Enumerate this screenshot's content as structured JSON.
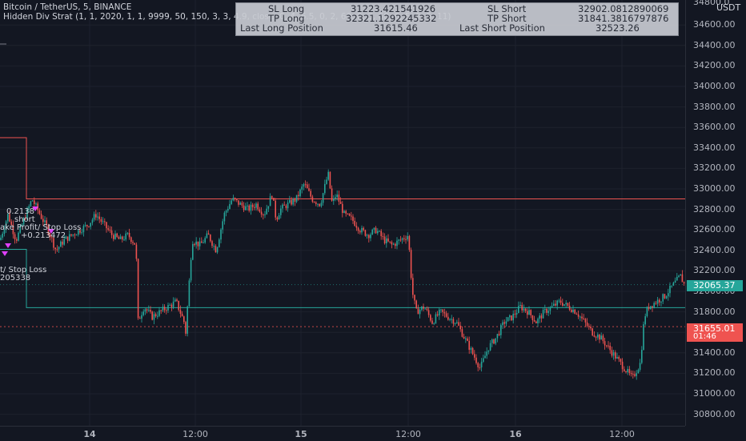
{
  "legend": {
    "symbol": "Bitcoin / TetherUS, 5, BINANCE",
    "indicator": "Hidden Div Strat (1, 1, 2020, 1, 1, 9999, 50, 150, 3, 3, 4.9, close, 0, 4, 6.5, 0, 2, 60, 0, 3, 60, 0, 5, 9, 5, 11)"
  },
  "stats_table": {
    "rows": [
      {
        "label1": "SL Long",
        "value1": "31223.421541926",
        "label2": "SL Short",
        "value2": "32902.0812890069"
      },
      {
        "label1": "TP Long",
        "value1": "32321.1292245332",
        "label2": "TP Short",
        "value2": "31841.3816797876"
      },
      {
        "label1": "Last Long Position",
        "value1": "31615.46",
        "label2": "Last Short Position",
        "value2": "32523.26"
      }
    ]
  },
  "price_axis": {
    "currency": "USDT",
    "top_partial": "34800.0",
    "ticks": [
      "34600.00",
      "34400.00",
      "34200.00",
      "34000.00",
      "33800.00",
      "33600.00",
      "33400.00",
      "33200.00",
      "33000.00",
      "32800.00",
      "32600.00",
      "32400.00",
      "32200.00",
      "32000.00",
      "31800.00",
      "31600.00",
      "31400.00",
      "31200.00",
      "31000.00",
      "30800.00"
    ],
    "current_price_label": "32065.37",
    "position_price_label": "31655.01",
    "position_sub_label": "01:46"
  },
  "time_axis": {
    "ticks": [
      "14",
      "12:00",
      "15",
      "12:00",
      "16",
      "12:00"
    ]
  },
  "annotations": {
    "a1": "0.2138",
    "a2": "short",
    "a3": "ake Profit/ Stop Loss",
    "a4": "+0.213472",
    "a5": "t/ Stop Loss",
    "a6": "205338"
  },
  "colors": {
    "background": "#131722",
    "up_candle": "#26a69a",
    "down_candle": "#ef5350",
    "stop_line": "#ef5350",
    "target_line": "#26a69a",
    "current_price_tag": "#26a69a",
    "position_price_tag": "#ef5350",
    "short_marker": "#e040fb"
  },
  "chart_data": {
    "type": "candlestick",
    "y_range": [
      30700,
      34800
    ],
    "price_path": [
      [
        0,
        32500
      ],
      [
        10,
        32750
      ],
      [
        20,
        32500
      ],
      [
        30,
        32700
      ],
      [
        40,
        32900
      ],
      [
        50,
        32750
      ],
      [
        60,
        32600
      ],
      [
        70,
        32400
      ],
      [
        80,
        32500
      ],
      [
        90,
        32550
      ],
      [
        100,
        32600
      ],
      [
        110,
        32650
      ],
      [
        120,
        32750
      ],
      [
        130,
        32650
      ],
      [
        140,
        32550
      ],
      [
        150,
        32500
      ],
      [
        160,
        32550
      ],
      [
        170,
        32450
      ],
      [
        172,
        31700
      ],
      [
        180,
        31850
      ],
      [
        190,
        31750
      ],
      [
        200,
        31800
      ],
      [
        210,
        31850
      ],
      [
        220,
        31900
      ],
      [
        230,
        31700
      ],
      [
        232,
        31600
      ],
      [
        240,
        32500
      ],
      [
        250,
        32450
      ],
      [
        260,
        32550
      ],
      [
        270,
        32400
      ],
      [
        280,
        32750
      ],
      [
        290,
        32900
      ],
      [
        300,
        32850
      ],
      [
        310,
        32800
      ],
      [
        320,
        32850
      ],
      [
        330,
        32750
      ],
      [
        340,
        32950
      ],
      [
        345,
        32700
      ],
      [
        350,
        32800
      ],
      [
        360,
        32850
      ],
      [
        370,
        32900
      ],
      [
        380,
        33050
      ],
      [
        390,
        32900
      ],
      [
        400,
        32850
      ],
      [
        410,
        33150
      ],
      [
        415,
        32850
      ],
      [
        420,
        32950
      ],
      [
        430,
        32750
      ],
      [
        440,
        32700
      ],
      [
        450,
        32600
      ],
      [
        460,
        32550
      ],
      [
        470,
        32600
      ],
      [
        480,
        32500
      ],
      [
        490,
        32450
      ],
      [
        500,
        32500
      ],
      [
        510,
        32550
      ],
      [
        515,
        32000
      ],
      [
        520,
        31800
      ],
      [
        530,
        31850
      ],
      [
        540,
        31700
      ],
      [
        550,
        31800
      ],
      [
        560,
        31750
      ],
      [
        570,
        31700
      ],
      [
        580,
        31550
      ],
      [
        590,
        31400
      ],
      [
        600,
        31250
      ],
      [
        610,
        31450
      ],
      [
        620,
        31550
      ],
      [
        630,
        31700
      ],
      [
        640,
        31750
      ],
      [
        650,
        31850
      ],
      [
        660,
        31800
      ],
      [
        670,
        31700
      ],
      [
        680,
        31800
      ],
      [
        690,
        31850
      ],
      [
        700,
        31900
      ],
      [
        710,
        31850
      ],
      [
        720,
        31800
      ],
      [
        730,
        31700
      ],
      [
        740,
        31600
      ],
      [
        750,
        31550
      ],
      [
        760,
        31450
      ],
      [
        770,
        31350
      ],
      [
        780,
        31250
      ],
      [
        790,
        31150
      ],
      [
        800,
        31300
      ],
      [
        805,
        31750
      ],
      [
        810,
        31850
      ],
      [
        820,
        31900
      ],
      [
        830,
        31950
      ],
      [
        840,
        32050
      ],
      [
        850,
        32150
      ],
      [
        855,
        32065
      ]
    ],
    "lines": [
      {
        "name": "stop",
        "y": 32902.08,
        "x_start": 33,
        "x_end": 856
      },
      {
        "name": "target",
        "y": 31841.38,
        "x_start": 33,
        "x_end": 856
      },
      {
        "name": "position",
        "y": 31655.01,
        "x_start": 0,
        "x_end": 856
      }
    ]
  }
}
